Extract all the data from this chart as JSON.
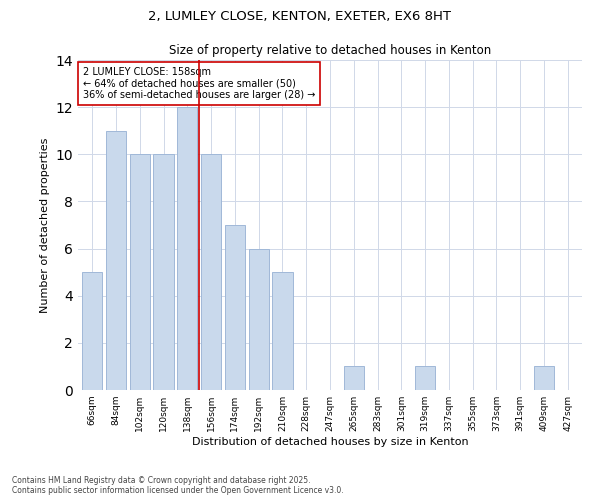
{
  "title_line1": "2, LUMLEY CLOSE, KENTON, EXETER, EX6 8HT",
  "title_line2": "Size of property relative to detached houses in Kenton",
  "xlabel": "Distribution of detached houses by size in Kenton",
  "ylabel": "Number of detached properties",
  "categories": [
    "66sqm",
    "84sqm",
    "102sqm",
    "120sqm",
    "138sqm",
    "156sqm",
    "174sqm",
    "192sqm",
    "210sqm",
    "228sqm",
    "247sqm",
    "265sqm",
    "283sqm",
    "301sqm",
    "319sqm",
    "337sqm",
    "355sqm",
    "373sqm",
    "391sqm",
    "409sqm",
    "427sqm"
  ],
  "values": [
    5,
    11,
    10,
    10,
    12,
    10,
    7,
    6,
    5,
    0,
    0,
    1,
    0,
    0,
    1,
    0,
    0,
    0,
    0,
    1,
    0
  ],
  "bar_color": "#c9d9ec",
  "bar_edge_color": "#a0b8d8",
  "annotation_text": "2 LUMLEY CLOSE: 158sqm\n← 64% of detached houses are smaller (50)\n36% of semi-detached houses are larger (28) →",
  "vline_x_index": 4.5,
  "vline_color": "#cc0000",
  "annotation_box_edge_color": "#cc0000",
  "ylim": [
    0,
    14
  ],
  "yticks": [
    0,
    2,
    4,
    6,
    8,
    10,
    12,
    14
  ],
  "footer": "Contains HM Land Registry data © Crown copyright and database right 2025.\nContains public sector information licensed under the Open Government Licence v3.0.",
  "bg_color": "#ffffff",
  "grid_color": "#d0d8e8"
}
